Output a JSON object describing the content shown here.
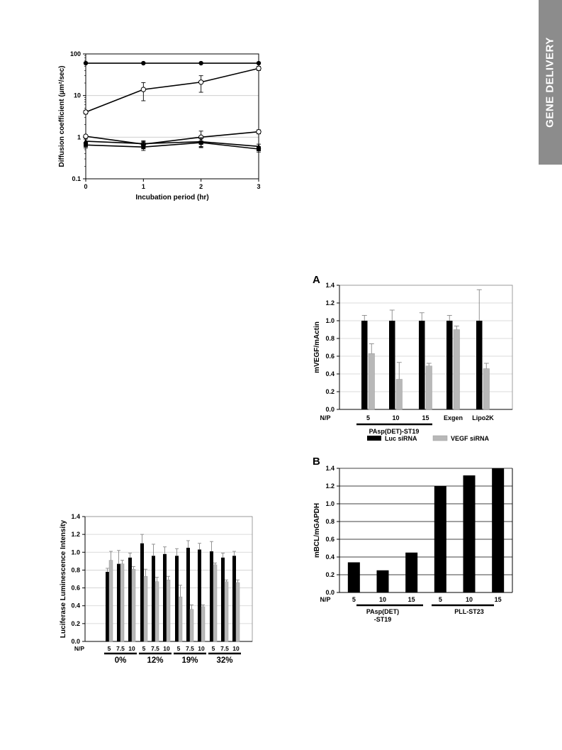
{
  "side_tab": {
    "label": "GENE DELIVERY",
    "color": "#8c8c8c"
  },
  "chart_data": [
    {
      "id": "diffusion",
      "type": "line",
      "ylabel": "Diffusion coefficient (µm²/sec)",
      "xlabel": "Incubation period (hr)",
      "y_scale": "log",
      "ylim": [
        0.1,
        100
      ],
      "y_ticks": [
        "0.1",
        "1",
        "10",
        "100"
      ],
      "x": [
        0,
        1,
        2,
        3
      ],
      "x_ticks": [
        "0",
        "1",
        "2",
        "3"
      ],
      "grid": true,
      "series": [
        {
          "marker": "filled-circle",
          "values": [
            60,
            60,
            60,
            60
          ],
          "err": [
            0,
            0,
            0,
            0
          ]
        },
        {
          "marker": "open-circle",
          "values": [
            4.0,
            14,
            21,
            45
          ],
          "err": [
            0.4,
            6.5,
            9,
            5
          ]
        },
        {
          "marker": "open-circle",
          "values": [
            1.05,
            0.68,
            1.0,
            1.35
          ],
          "err": [
            0.08,
            0.1,
            0.4,
            0.15
          ]
        },
        {
          "marker": "filled-triangle",
          "values": [
            0.8,
            0.7,
            0.78,
            0.6
          ],
          "err": [
            0.1,
            0.12,
            0.2,
            0.08
          ]
        },
        {
          "marker": "filled-square",
          "values": [
            0.65,
            0.58,
            0.74,
            0.52
          ],
          "err": [
            0.1,
            0.1,
            0.18,
            0.08
          ]
        }
      ]
    },
    {
      "id": "luciferase",
      "type": "bar",
      "ylabel": "Luciferase Luminescence Intensity",
      "ylim": [
        0,
        1.4
      ],
      "y_ticks": [
        "0.0",
        "0.2",
        "0.4",
        "0.6",
        "0.8",
        "1.0",
        "1.2",
        "1.4"
      ],
      "np_label": "N/P",
      "groups": [
        {
          "label": "0%",
          "categories": [
            "5",
            "7.5",
            "10"
          ]
        },
        {
          "label": "12%",
          "categories": [
            "5",
            "7.5",
            "10"
          ]
        },
        {
          "label": "19%",
          "categories": [
            "5",
            "7.5",
            "10"
          ]
        },
        {
          "label": "32%",
          "categories": [
            "5",
            "7.5",
            "10"
          ]
        }
      ],
      "series": [
        {
          "color": "#000000",
          "values": [
            0.78,
            0.87,
            0.94,
            1.1,
            0.96,
            0.98,
            0.96,
            1.05,
            1.03,
            1.01,
            0.94,
            0.96
          ],
          "err": [
            0.04,
            0.15,
            0.05,
            0.1,
            0.13,
            0.08,
            0.08,
            0.08,
            0.07,
            0.11,
            0.05,
            0.05
          ]
        },
        {
          "color": "#b8b8b8",
          "values": [
            0.91,
            0.87,
            0.81,
            0.73,
            0.67,
            0.69,
            0.5,
            0.36,
            0.39,
            0.86,
            0.67,
            0.66
          ],
          "err": [
            0.1,
            0.04,
            0.03,
            0.08,
            0.05,
            0.04,
            0.13,
            0.05,
            0.02,
            0.02,
            0.02,
            0.03
          ]
        }
      ]
    },
    {
      "id": "vegf",
      "panel": "A",
      "type": "bar",
      "ylabel": "mVEGF/mActin",
      "ylim": [
        0,
        1.4
      ],
      "y_ticks": [
        "0.0",
        "0.2",
        "0.4",
        "0.6",
        "0.8",
        "1.0",
        "1.2",
        "1.4"
      ],
      "np_label": "N/P",
      "categories": [
        "5",
        "10",
        "15",
        "Exgen",
        "Lipo2K"
      ],
      "group_label": "PAsp(DET)-ST19",
      "series": [
        {
          "name": "Luc siRNA",
          "color": "#000000",
          "values": [
            1.0,
            1.0,
            1.0,
            1.0,
            1.0
          ],
          "err": [
            0.06,
            0.12,
            0.09,
            0.06,
            0.35
          ]
        },
        {
          "name": "VEGF siRNA",
          "color": "#b8b8b8",
          "values": [
            0.63,
            0.34,
            0.49,
            0.9,
            0.46
          ],
          "err": [
            0.11,
            0.19,
            0.03,
            0.04,
            0.06
          ]
        }
      ]
    },
    {
      "id": "bcl",
      "panel": "B",
      "type": "bar",
      "ylabel": "mBCL/mGAPDH",
      "ylim": [
        0,
        1.4
      ],
      "y_ticks": [
        "0.0",
        "0.2",
        "0.4",
        "0.6",
        "0.8",
        "1.0",
        "1.2",
        "1.4"
      ],
      "np_label": "N/P",
      "categories": [
        "5",
        "10",
        "15",
        "5",
        "10",
        "15"
      ],
      "groups": [
        {
          "label_lines": [
            "PAsp(DET)",
            "-ST19"
          ]
        },
        {
          "label_lines": [
            "PLL-ST23"
          ]
        }
      ],
      "series": [
        {
          "color": "#000000",
          "values": [
            0.34,
            0.25,
            0.45,
            1.2,
            1.32,
            1.4
          ]
        }
      ]
    }
  ]
}
